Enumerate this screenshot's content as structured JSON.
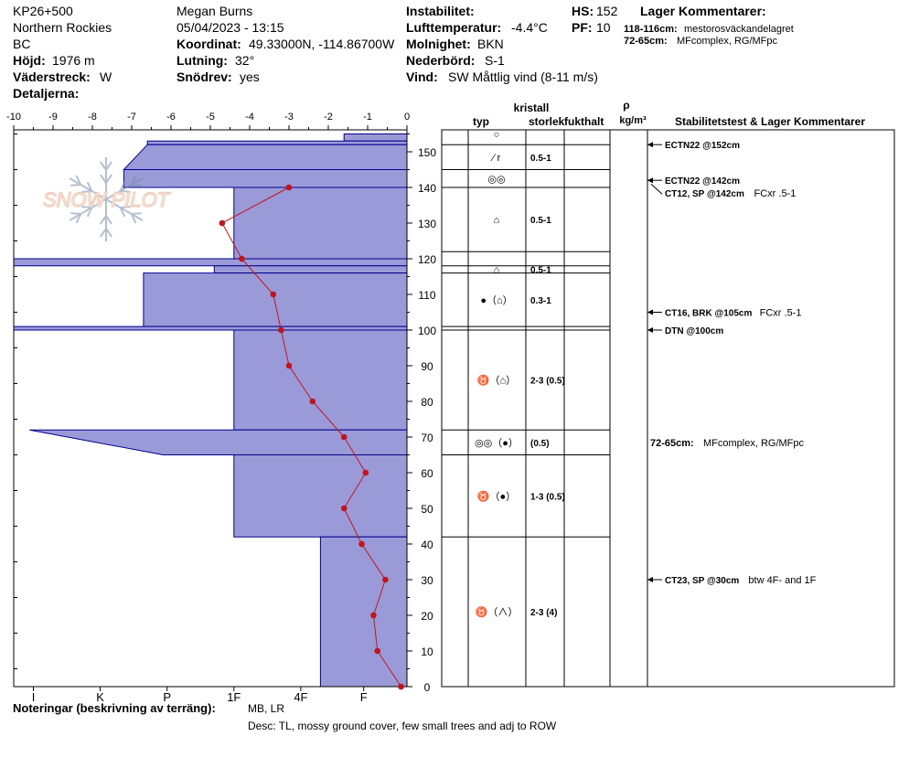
{
  "header": {
    "col1": [
      "KP26+500",
      "Northern Rockies",
      "BC"
    ],
    "height_label": "Höjd:",
    "height_value": "1976 m",
    "aspect_label": "Väderstreck:",
    "aspect_value": "W",
    "details_label": "Detaljerna:",
    "observer": "Megan Burns",
    "datetime": "05/04/2023 - 13:15",
    "coord_label": "Koordinat:",
    "coord_value": "49.33000N, -114.86700W",
    "slope_label": "Lutning:",
    "slope_value": "32°",
    "drift_label": "Snödrev:",
    "drift_value": "yes",
    "instability_label": "Instabilitet:",
    "airtemp_label": "Lufttemperatur:",
    "airtemp_value": "-4.4°C",
    "sky_label": "Molnighet:",
    "sky_value": "BKN",
    "precip_label": "Nederbörd:",
    "precip_value": "S-1",
    "wind_label": "Vind:",
    "wind_value": "SW  Måttlig vind (8-11 m/s)",
    "hs_label": "HS:",
    "hs_value": "152",
    "pf_label": "PF:",
    "pf_value": "10",
    "layer_comments_title": "Lager Kommentarer:",
    "layer_comments": [
      {
        "range": "118-116cm:",
        "text": "mestorosväckandelagret"
      },
      {
        "range": "72-65cm:",
        "text": "MFcomplex, RG/MFpc"
      }
    ]
  },
  "watermark": "SNOW PILOT",
  "columns": {
    "crystal_title": "kristall",
    "type": "typ",
    "size": "storlek",
    "moisture": "fukthalt",
    "density_symbol": "ρ",
    "density_unit": "kg/m³",
    "stability": "Stabilitetstest & Lager Kommentarer"
  },
  "footer": {
    "notes_label": "Noteringar (beskrivning av terräng):",
    "notes_value": "MB, LR",
    "desc": "Desc: TL, mossy ground cover, few small trees and adj to ROW"
  },
  "chart_data": {
    "type": "snow-profile",
    "temperature_axis": {
      "ticks": [
        -10,
        -9,
        -8,
        -7,
        -6,
        -5,
        -4,
        -3,
        -2,
        -1,
        0
      ],
      "range": [
        -10,
        0
      ]
    },
    "height_axis": {
      "ticks": [
        0,
        10,
        20,
        30,
        40,
        50,
        60,
        70,
        80,
        90,
        100,
        110,
        120,
        130,
        140,
        150
      ],
      "range": [
        0,
        155
      ]
    },
    "hardness_scale": {
      "labels": [
        "I",
        "K",
        "P",
        "1F",
        "4F",
        "F"
      ],
      "label_temps": [
        -9.5,
        -7.8,
        -6.1,
        -4.4,
        -2.7,
        -1.1
      ]
    },
    "hardness_profile": [
      {
        "top": 155,
        "bottom": 153,
        "temp": -1.6
      },
      {
        "top": 153,
        "bottom": 152,
        "temp": -6.6
      },
      {
        "top": 152,
        "bottom": 145,
        "temp_top": -6.6,
        "temp_bottom": -7.2
      },
      {
        "top": 145,
        "bottom": 140,
        "temp": -7.2
      },
      {
        "top": 140,
        "bottom": 120,
        "temp": -4.4
      },
      {
        "top": 120,
        "bottom": 118,
        "temp": -10
      },
      {
        "top": 118,
        "bottom": 116,
        "temp": -4.9
      },
      {
        "top": 116,
        "bottom": 101,
        "temp": -6.7
      },
      {
        "top": 101,
        "bottom": 100,
        "temp": -10
      },
      {
        "top": 100,
        "bottom": 72,
        "temp": -4.4
      },
      {
        "top": 72,
        "bottom": 65,
        "temp_top": -9.6,
        "temp_bottom": -6.2
      },
      {
        "top": 65,
        "bottom": 42,
        "temp": -4.4
      },
      {
        "top": 42,
        "bottom": 0,
        "temp": -2.2
      }
    ],
    "temperature_profile": [
      {
        "h": 140,
        "t": -3.0
      },
      {
        "h": 130,
        "t": -4.7
      },
      {
        "h": 120,
        "t": -4.2
      },
      {
        "h": 110,
        "t": -3.4
      },
      {
        "h": 100,
        "t": -3.2
      },
      {
        "h": 90,
        "t": -3.0
      },
      {
        "h": 80,
        "t": -2.4
      },
      {
        "h": 70,
        "t": -1.6
      },
      {
        "h": 60,
        "t": -1.05
      },
      {
        "h": 50,
        "t": -1.6
      },
      {
        "h": 40,
        "t": -1.15
      },
      {
        "h": 30,
        "t": -0.55
      },
      {
        "h": 20,
        "t": -0.85
      },
      {
        "h": 10,
        "t": -0.75
      },
      {
        "h": 0,
        "t": -0.15
      }
    ],
    "layer_boundaries": [
      152,
      145,
      140,
      122,
      118,
      116,
      101,
      100,
      72,
      65,
      42,
      0
    ],
    "layers": [
      {
        "center": 155,
        "grain": "○",
        "size": ""
      },
      {
        "center": 148.5,
        "grain": "⁄ r",
        "size": "0.5-1"
      },
      {
        "center": 142.5,
        "grain": "◎◎",
        "size": ""
      },
      {
        "center": 131,
        "grain": "⌂",
        "size": "0.5-1"
      },
      {
        "center": 117,
        "grain": "⌂",
        "size": "0.5-1"
      },
      {
        "center": 108.5,
        "grain": "●（⌂）",
        "size": "0.3-1"
      },
      {
        "center": 86,
        "grain": "♉（⌂）",
        "size": "2-3 (0.5)"
      },
      {
        "center": 68.5,
        "grain": "◎◎（●）",
        "size": "(0.5)"
      },
      {
        "center": 53.5,
        "grain": "♉（●）",
        "size": "1-3 (0.5)"
      },
      {
        "center": 21,
        "grain": "♉（∧）",
        "size": "2-3 (4)"
      }
    ],
    "tests": [
      {
        "h": 152,
        "label": "ECTN22 @152cm",
        "comment": ""
      },
      {
        "h": 142,
        "label": "ECTN22 @142cm",
        "comment": ""
      },
      {
        "h": 142,
        "label": "CT12, SP @142cm",
        "comment": "FCxr .5-1",
        "offset": true
      },
      {
        "h": 105,
        "label": "CT16, BRK @105cm",
        "comment": "FCxr .5-1"
      },
      {
        "h": 100,
        "label": "DTN @100cm",
        "comment": ""
      },
      {
        "h": 30,
        "label": "CT23, SP @30cm",
        "comment": "btw 4F- and 1F"
      }
    ],
    "side_comment": {
      "h": 68.5,
      "range": "72-65cm:",
      "text": "MFcomplex, RG/MFpc"
    }
  },
  "colors": {
    "hardness_fill": "#9b9ad8",
    "hardness_stroke": "#00008b",
    "temperature": "#c0151e",
    "grid": "#000000"
  }
}
